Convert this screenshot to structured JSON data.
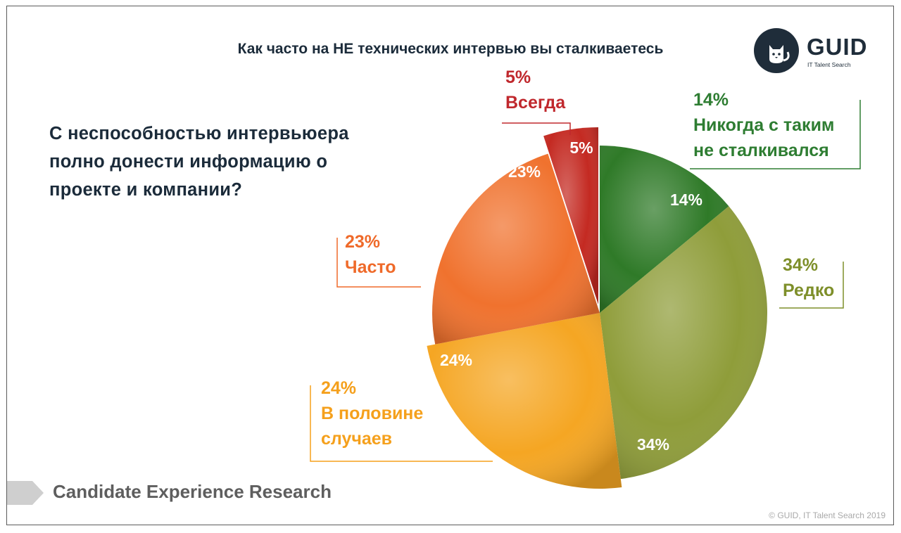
{
  "title": "Как часто на НЕ технических интервью вы сталкиваетесь",
  "question": [
    "С неспособностью интервьюера",
    "полно донести информацию о",
    "проекте и компании?"
  ],
  "logo": {
    "name": "GUID",
    "tagline": "IT Talent Search"
  },
  "footer": "Candidate Experience Research",
  "copyright": "© GUID, IT Talent Search 2019",
  "chart_data": {
    "type": "pie",
    "title": "Как часто на НЕ технических интервью вы сталкиваетесь",
    "slices": [
      {
        "label": "Никогда с таким не сталкивался",
        "label_lines": [
          "Никогда с таким",
          "не сталкивался"
        ],
        "value": 14,
        "display": "14%",
        "color": "#2f7a28"
      },
      {
        "label": "Редко",
        "label_lines": [
          "Редко"
        ],
        "value": 34,
        "display": "34%",
        "color": "#8f9d3a"
      },
      {
        "label": "В половине случаев",
        "label_lines": [
          "В половине",
          "случаев"
        ],
        "value": 24,
        "display": "24%",
        "color": "#f5a623"
      },
      {
        "label": "Часто",
        "label_lines": [
          "Часто"
        ],
        "value": 23,
        "display": "23%",
        "color": "#f0722e"
      },
      {
        "label": "Всегда",
        "label_lines": [
          "Всегда"
        ],
        "value": 5,
        "display": "5%",
        "color": "#c42a22"
      }
    ],
    "label_colors": {
      "Никогда": "#2e7d32",
      "Редко": "#7e8f2a",
      "В половине": "#f5a01c",
      "Часто": "#ef6a2a",
      "Всегда": "#c0282d"
    }
  }
}
